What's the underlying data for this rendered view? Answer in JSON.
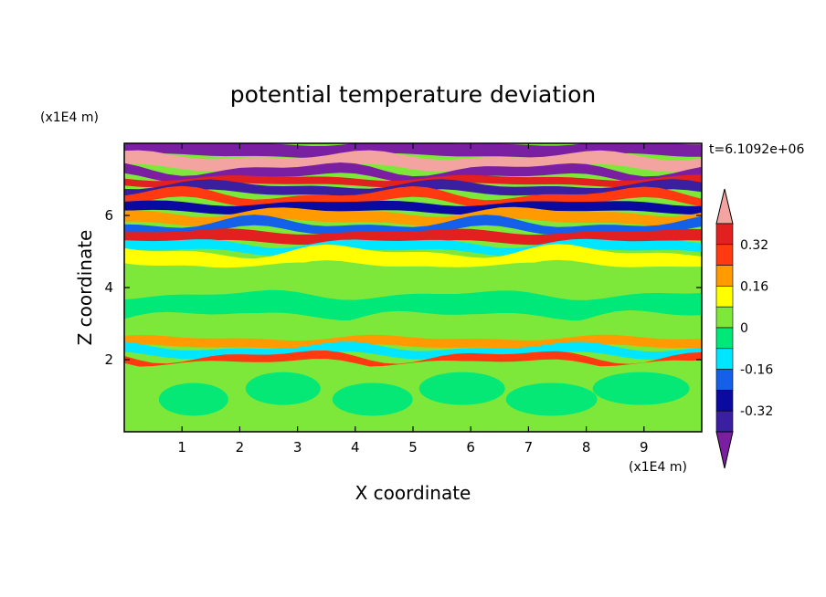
{
  "chart_data": {
    "type": "heatmap",
    "title": "potential temperature deviation",
    "xlabel": "X coordinate",
    "ylabel": "Z coordinate",
    "x_unit": "(x1E4 m)",
    "y_unit": "(x1E4 m)",
    "time_label": "t=6.1092e+06",
    "xlim": [
      0,
      10
    ],
    "ylim": [
      0,
      8
    ],
    "x_ticks": [
      "1",
      "2",
      "3",
      "4",
      "5",
      "6",
      "7",
      "8",
      "9"
    ],
    "y_ticks": [
      "2",
      "4",
      "6"
    ],
    "colorbar": {
      "levels": [
        -0.4,
        -0.32,
        -0.24,
        -0.16,
        -0.08,
        0,
        0.08,
        0.16,
        0.24,
        0.32,
        0.4
      ],
      "labels": [
        "0.32",
        "0.16",
        "0",
        "-0.16",
        "-0.32"
      ],
      "colors": [
        "#7b1fa2",
        "#3a1fa0",
        "#0a0aa0",
        "#1560e8",
        "#00e6ff",
        "#00e878",
        "#7ee83a",
        "#ffff00",
        "#ff9a00",
        "#ff3a10",
        "#e22020",
        "#f4a4a0"
      ],
      "extend": "both"
    },
    "bands": [
      {
        "z": [
          7.65,
          8.0
        ],
        "value": -0.45
      },
      {
        "z": [
          7.3,
          7.65
        ],
        "value": 0.45
      },
      {
        "z": [
          7.05,
          7.3
        ],
        "value": -0.45
      },
      {
        "z": [
          6.85,
          7.05
        ],
        "value": 0.36
      },
      {
        "z": [
          6.6,
          6.85
        ],
        "value": -0.36
      },
      {
        "z": [
          6.35,
          6.6
        ],
        "value": 0.3
      },
      {
        "z": [
          6.1,
          6.35
        ],
        "value": -0.28
      },
      {
        "z": [
          5.8,
          6.1
        ],
        "value": 0.2
      },
      {
        "z": [
          5.55,
          5.8
        ],
        "value": -0.2
      },
      {
        "z": [
          5.25,
          5.55
        ],
        "value": 0.34
      },
      {
        "z": [
          5.0,
          5.25
        ],
        "value": -0.1
      },
      {
        "z": [
          4.6,
          5.0
        ],
        "value": 0.1
      },
      {
        "z": [
          3.8,
          4.6
        ],
        "value": 0.04
      },
      {
        "z": [
          3.2,
          3.8
        ],
        "value": -0.03
      },
      {
        "z": [
          2.6,
          3.2
        ],
        "value": 0.06
      },
      {
        "z": [
          2.35,
          2.6
        ],
        "value": 0.2
      },
      {
        "z": [
          2.1,
          2.35
        ],
        "value": -0.1
      },
      {
        "z": [
          1.9,
          2.1
        ],
        "value": 0.3
      },
      {
        "z": [
          0.0,
          1.9
        ],
        "value": 0.04
      }
    ]
  }
}
